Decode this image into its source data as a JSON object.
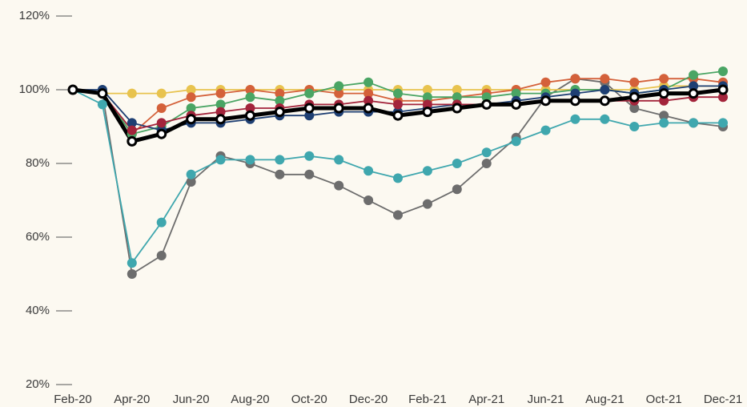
{
  "chart_data": {
    "type": "line",
    "categories": [
      "Feb-20",
      null,
      "Apr-20",
      null,
      "Jun-20",
      null,
      "Aug-20",
      null,
      "Oct-20",
      null,
      "Dec-20",
      null,
      "Feb-21",
      null,
      "Apr-21",
      null,
      "Jun-21",
      null,
      "Aug-21",
      null,
      "Oct-21",
      null,
      "Dec-21"
    ],
    "ylim": [
      20,
      120
    ],
    "yticks": [
      {
        "value": 20,
        "label": "20%"
      },
      {
        "value": 40,
        "label": "40%"
      },
      {
        "value": 60,
        "label": "60%"
      },
      {
        "value": 80,
        "label": "80%"
      },
      {
        "value": 100,
        "label": "100%"
      },
      {
        "value": 120,
        "label": "120%"
      }
    ],
    "series": [
      {
        "color": "#6d6d6d",
        "values": [
          100,
          99,
          50,
          55,
          75,
          82,
          80,
          77,
          77,
          74,
          70,
          66,
          69,
          73,
          80,
          87,
          98,
          103,
          102,
          95,
          93,
          91,
          90
        ]
      },
      {
        "color": "#3fa7ae",
        "values": [
          100,
          96,
          53,
          64,
          77,
          81,
          81,
          81,
          82,
          81,
          78,
          76,
          78,
          80,
          83,
          86,
          89,
          92,
          92,
          90,
          91,
          91,
          91
        ]
      },
      {
        "color": "#e8c34e",
        "values": [
          100,
          99,
          99,
          99,
          100,
          100,
          100,
          100,
          100,
          100,
          100,
          100,
          100,
          100,
          100,
          100,
          100,
          100,
          100,
          100,
          101,
          101,
          101
        ]
      },
      {
        "color": "#d4613a",
        "values": [
          100,
          99,
          88,
          95,
          98,
          99,
          100,
          99,
          100,
          99,
          99,
          97,
          97,
          98,
          99,
          100,
          102,
          103,
          103,
          102,
          103,
          103,
          102
        ]
      },
      {
        "color": "#4aa564",
        "values": [
          100,
          99,
          88,
          90,
          95,
          96,
          98,
          97,
          99,
          101,
          102,
          99,
          98,
          98,
          98,
          99,
          99,
          100,
          100,
          99,
          100,
          104,
          105
        ]
      },
      {
        "color": "#1e3f73",
        "values": [
          100,
          100,
          91,
          89,
          91,
          91,
          92,
          93,
          93,
          94,
          94,
          94,
          95,
          96,
          96,
          97,
          98,
          99,
          100,
          99,
          100,
          101,
          101
        ]
      },
      {
        "color": "#a3243b",
        "values": [
          100,
          99,
          89,
          91,
          93,
          94,
          95,
          95,
          96,
          96,
          97,
          96,
          96,
          96,
          96,
          96,
          97,
          97,
          97,
          97,
          97,
          98,
          98
        ]
      },
      {
        "color": "#000000",
        "values": [
          100,
          99,
          86,
          88,
          92,
          92,
          93,
          94,
          95,
          95,
          95,
          93,
          94,
          95,
          96,
          96,
          97,
          97,
          97,
          98,
          99,
          99,
          100
        ]
      }
    ]
  }
}
